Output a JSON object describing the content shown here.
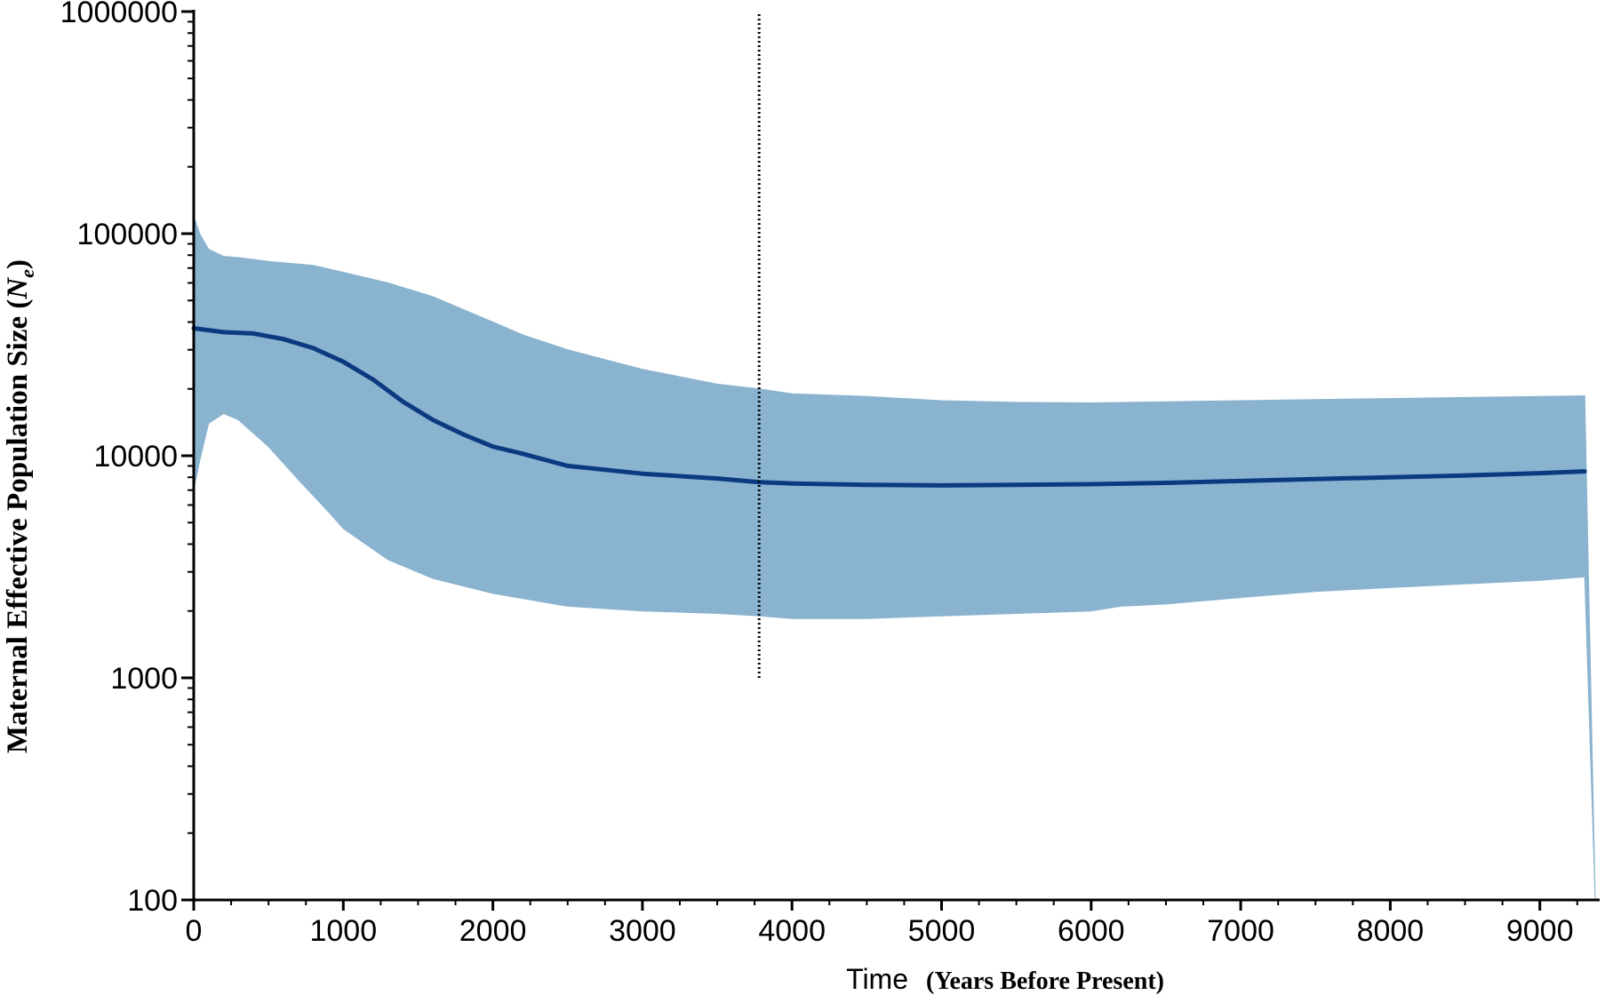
{
  "chart_data": {
    "type": "area",
    "title": "",
    "xlabel": {
      "main": "Time",
      "sub": "(Years Before Present)"
    },
    "ylabel": {
      "main": "Maternal Effective Population Size (",
      "symbol": "N",
      "subscript": "e",
      "close": ")"
    },
    "yscale": "log",
    "xlim": [
      0,
      9400
    ],
    "ylim": [
      100,
      1000000
    ],
    "x_ticks": [
      0,
      1000,
      2000,
      3000,
      4000,
      5000,
      6000,
      7000,
      8000,
      9000
    ],
    "x_tick_labels": [
      "0",
      "1000",
      "2000",
      "3000",
      "4000",
      "5000",
      "6000",
      "7000",
      "8000",
      "9000"
    ],
    "y_ticks": [
      100,
      1000,
      10000,
      100000,
      1000000
    ],
    "y_tick_labels": [
      "100",
      "1000",
      "10000",
      "100000",
      "1000000"
    ],
    "grid": false,
    "legend": "none",
    "colors": {
      "band": "#8ab3cf",
      "median": "#0b3a80",
      "reference": "#000000",
      "axis": "#000000"
    },
    "reference_line": {
      "x": 3780,
      "y_from": 1000,
      "y_to": 1000000,
      "style": "dotted"
    },
    "upper_95_hpd": {
      "x": [
        0,
        40,
        100,
        200,
        300,
        500,
        800,
        1000,
        1300,
        1600,
        2000,
        2200,
        2500,
        3000,
        3500,
        3780,
        4000,
        4500,
        5000,
        5500,
        6000,
        6500,
        7000,
        7500,
        8000,
        8500,
        9000,
        9300
      ],
      "y": [
        120000,
        100000,
        85000,
        79000,
        78000,
        75000,
        72000,
        67000,
        60000,
        52000,
        40000,
        35000,
        30000,
        24500,
        21000,
        20000,
        19000,
        18500,
        17700,
        17400,
        17300,
        17500,
        17700,
        17900,
        18100,
        18300,
        18500,
        18600
      ]
    },
    "lower_95_hpd": {
      "x": [
        0,
        40,
        100,
        200,
        300,
        500,
        700,
        900,
        1000,
        1300,
        1600,
        2000,
        2500,
        3000,
        3500,
        3780,
        4000,
        4500,
        5000,
        5500,
        6000,
        6200,
        6500,
        7000,
        7500,
        8000,
        8500,
        9000,
        9300,
        9370
      ],
      "y": [
        7000,
        9500,
        14000,
        15500,
        14500,
        11000,
        7800,
        5600,
        4700,
        3400,
        2800,
        2400,
        2100,
        2000,
        1950,
        1900,
        1850,
        1850,
        1900,
        1950,
        2000,
        2100,
        2150,
        2300,
        2450,
        2550,
        2650,
        2750,
        2850,
        100
      ]
    },
    "median": {
      "x": [
        0,
        200,
        400,
        600,
        800,
        1000,
        1200,
        1400,
        1600,
        1800,
        2000,
        2200,
        2500,
        3000,
        3500,
        3780,
        4000,
        4500,
        5000,
        5500,
        6000,
        6500,
        7000,
        7500,
        8000,
        8500,
        9000,
        9300
      ],
      "y": [
        37500,
        36000,
        35500,
        33500,
        30500,
        26500,
        22000,
        17500,
        14500,
        12500,
        11000,
        10200,
        9000,
        8300,
        7900,
        7600,
        7500,
        7400,
        7350,
        7400,
        7450,
        7550,
        7700,
        7850,
        8000,
        8150,
        8350,
        8500
      ]
    }
  }
}
